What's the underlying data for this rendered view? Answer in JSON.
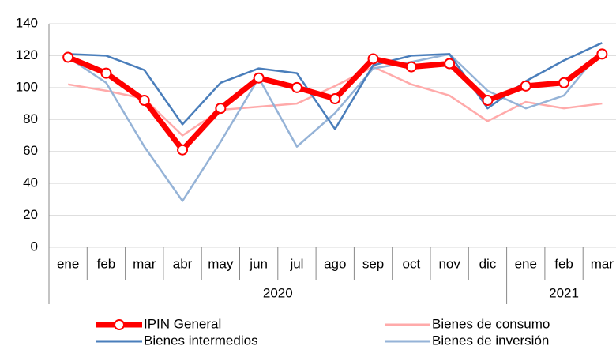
{
  "chart_data": {
    "type": "line",
    "categories": [
      "ene",
      "feb",
      "mar",
      "abr",
      "may",
      "jun",
      "jul",
      "ago",
      "sep",
      "oct",
      "nov",
      "dic",
      "ene",
      "feb",
      "mar"
    ],
    "category_years": [
      "2020",
      null,
      null,
      null,
      null,
      null,
      null,
      null,
      null,
      null,
      null,
      null,
      "2021",
      null,
      null
    ],
    "series": [
      {
        "name": "IPIN General",
        "color": "#ff0000",
        "marker": "circle",
        "values": [
          119,
          109,
          92,
          61,
          87,
          106,
          100,
          93,
          118,
          113,
          115,
          92,
          101,
          103,
          121
        ]
      },
      {
        "name": "Bienes de consumo",
        "color": "#ffaaaa",
        "values": [
          102,
          98,
          93,
          70,
          86,
          88,
          90,
          101,
          113,
          102,
          95,
          79,
          91,
          87,
          90
        ]
      },
      {
        "name": "Bienes intermedios",
        "color": "#4a7ebb",
        "values": [
          121,
          120,
          111,
          77,
          103,
          112,
          109,
          74,
          114,
          120,
          121,
          87,
          104,
          117,
          128
        ]
      },
      {
        "name": "Bienes de inversión",
        "color": "#95b3d7",
        "values": [
          119,
          103,
          63,
          29,
          66,
          106,
          63,
          84,
          112,
          116,
          121,
          98,
          87,
          95,
          124
        ]
      }
    ],
    "ylim": [
      0,
      140
    ],
    "yticks": [
      0,
      20,
      40,
      60,
      80,
      100,
      120,
      140
    ],
    "grid": true,
    "legend": "bottom"
  }
}
